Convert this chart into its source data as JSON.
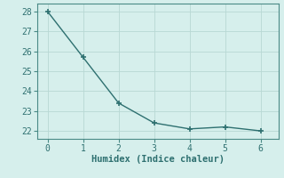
{
  "x": [
    0,
    1,
    2,
    3,
    4,
    5,
    6
  ],
  "y": [
    28.0,
    25.7,
    23.4,
    22.4,
    22.1,
    22.2,
    22.0
  ],
  "line_color": "#2e7070",
  "marker": "+",
  "marker_size": 4,
  "marker_linewidth": 1.2,
  "background_color": "#d6efec",
  "grid_color": "#b8d8d4",
  "xlabel": "Humidex (Indice chaleur)",
  "xlabel_fontsize": 7.5,
  "tick_fontsize": 7,
  "xlim": [
    -0.3,
    6.5
  ],
  "ylim": [
    21.6,
    28.4
  ],
  "yticks": [
    22,
    23,
    24,
    25,
    26,
    27,
    28
  ],
  "xticks": [
    0,
    1,
    2,
    3,
    4,
    5,
    6
  ],
  "linewidth": 1.0,
  "figure_bg": "#d6efec",
  "spine_color": "#4a8a86"
}
